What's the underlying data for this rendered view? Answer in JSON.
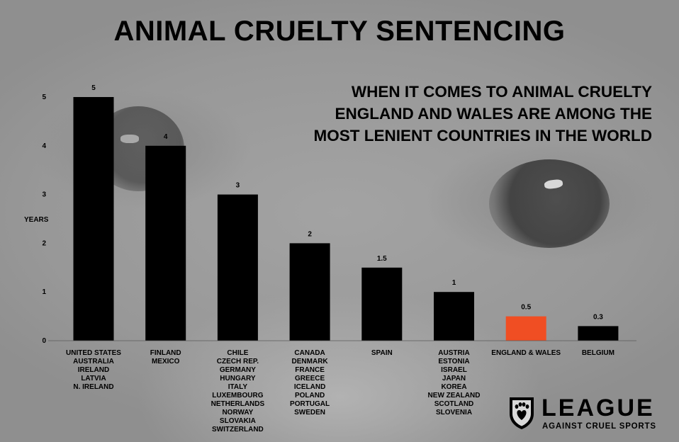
{
  "title": "ANIMAL CRUELTY SENTENCING",
  "subtitle": [
    "WHEN IT COMES TO ANIMAL CRUELTY",
    "ENGLAND AND WALES ARE AMONG THE",
    "MOST LENIENT COUNTRIES IN THE WORLD"
  ],
  "chart_data": {
    "type": "bar",
    "title": "ANIMAL CRUELTY SENTENCING",
    "ylabel": "YEARS",
    "xlabel": "",
    "ylim": [
      0,
      5
    ],
    "yticks": [
      "0",
      "1",
      "2",
      "3",
      "4",
      "5"
    ],
    "grid": false,
    "categories": [
      [
        "UNITED STATES",
        "AUSTRALIA",
        "IRELAND",
        "LATVIA",
        "N. IRELAND"
      ],
      [
        "FINLAND",
        "MEXICO"
      ],
      [
        "CHILE",
        "CZECH REP.",
        "GERMANY",
        "HUNGARY",
        "ITALY",
        "LUXEMBOURG",
        "NETHERLANDS",
        "NORWAY",
        "SLOVAKIA",
        "SWITZERLAND"
      ],
      [
        "CANADA",
        "DENMARK",
        "FRANCE",
        "GREECE",
        "ICELAND",
        "POLAND",
        "PORTUGAL",
        "SWEDEN"
      ],
      [
        "SPAIN"
      ],
      [
        "AUSTRIA",
        "ESTONIA",
        "ISRAEL",
        "JAPAN",
        "KOREA",
        "NEW ZEALAND",
        "SCOTLAND",
        "SLOVENIA"
      ],
      [
        "ENGLAND & WALES"
      ],
      [
        "BELGIUM"
      ]
    ],
    "values": [
      5,
      4,
      3,
      2,
      1.5,
      1,
      0.5,
      0.3
    ],
    "value_labels": [
      "5",
      "4",
      "3",
      "2",
      "1.5",
      "1",
      "0.5",
      "0.3"
    ],
    "colors": [
      "#000000",
      "#000000",
      "#000000",
      "#000000",
      "#000000",
      "#000000",
      "#f04e23",
      "#000000"
    ],
    "highlight_category": "ENGLAND & WALES"
  },
  "logo": {
    "name": "LEAGUE",
    "tagline": "AGAINST CRUEL SPORTS",
    "icon": "paw-heart-shield-icon"
  }
}
